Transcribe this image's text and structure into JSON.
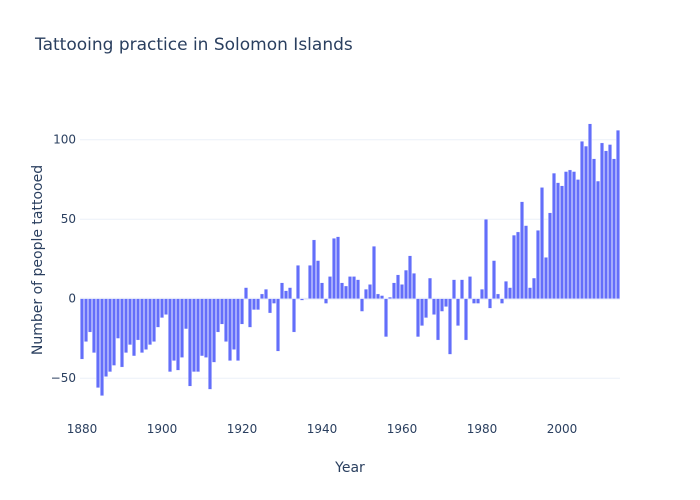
{
  "chart_data": {
    "type": "bar",
    "title": "Tattooing practice in Solomon Islands",
    "xlabel": "Year",
    "ylabel": "Number of people tattooed",
    "xlim": [
      1879.5,
      2014.5
    ],
    "ylim": [
      -70,
      125
    ],
    "x_ticks": [
      1880,
      1900,
      1920,
      1940,
      1960,
      1980,
      2000
    ],
    "y_ticks": [
      -50,
      0,
      50,
      100
    ],
    "grid": true,
    "bar_color": "#636efa",
    "series": [
      {
        "x": [
          1880,
          1881,
          1882,
          1883,
          1884,
          1885,
          1886,
          1887,
          1888,
          1889,
          1890,
          1891,
          1892,
          1893,
          1894,
          1895,
          1896,
          1897,
          1898,
          1899,
          1900,
          1901,
          1902,
          1903,
          1904,
          1905,
          1906,
          1907,
          1908,
          1909,
          1910,
          1911,
          1912,
          1913,
          1914,
          1915,
          1916,
          1917,
          1918,
          1919,
          1920,
          1921,
          1922,
          1923,
          1924,
          1925,
          1926,
          1927,
          1928,
          1929,
          1930,
          1931,
          1932,
          1933,
          1934,
          1935,
          1936,
          1937,
          1938,
          1939,
          1940,
          1941,
          1942,
          1943,
          1944,
          1945,
          1946,
          1947,
          1948,
          1949,
          1950,
          1951,
          1952,
          1953,
          1954,
          1955,
          1956,
          1957,
          1958,
          1959,
          1960,
          1961,
          1962,
          1963,
          1964,
          1965,
          1966,
          1967,
          1968,
          1969,
          1970,
          1971,
          1972,
          1973,
          1974,
          1975,
          1976,
          1977,
          1978,
          1979,
          1980,
          1981,
          1982,
          1983,
          1984,
          1985,
          1986,
          1987,
          1988,
          1989,
          1990,
          1991,
          1992,
          1993,
          1994,
          1995,
          1996,
          1997,
          1998,
          1999,
          2000,
          2001,
          2002,
          2003,
          2004,
          2005,
          2006,
          2007,
          2008,
          2009,
          2010,
          2011,
          2012,
          2013,
          2014
        ],
        "values": [
          -38,
          -27,
          -21,
          -34,
          -56,
          -61,
          -49,
          -46,
          -42,
          -25,
          -43,
          -34,
          -29,
          -36,
          -26,
          -34,
          -32,
          -29,
          -27,
          -18,
          -12,
          -10,
          -46,
          -39,
          -45,
          -37,
          -19,
          -55,
          -46,
          -46,
          -36,
          -37,
          -57,
          -40,
          -21,
          -16,
          -27,
          -39,
          -32,
          -39,
          -16,
          7,
          -18,
          -7,
          -7,
          3,
          6,
          -9,
          -3,
          -33,
          10,
          5,
          7,
          -21,
          21,
          -1,
          0,
          21,
          37,
          24,
          10,
          -3,
          14,
          38,
          39,
          10,
          8,
          14,
          14,
          12,
          -8,
          6,
          9,
          33,
          3,
          2,
          -24,
          1,
          10,
          15,
          9,
          18,
          27,
          16,
          -24,
          -17,
          -12,
          13,
          -10,
          -26,
          -8,
          -5,
          -35,
          12,
          -17,
          12,
          -26,
          14,
          -3,
          -3,
          6,
          50,
          -6,
          24,
          3,
          -3,
          11,
          7,
          40,
          42,
          61,
          46,
          7,
          13,
          43,
          70,
          26,
          54,
          79,
          73,
          71,
          80,
          81,
          80,
          75,
          99,
          96,
          110,
          88,
          74,
          98,
          93,
          97,
          88,
          106
        ]
      }
    ]
  }
}
